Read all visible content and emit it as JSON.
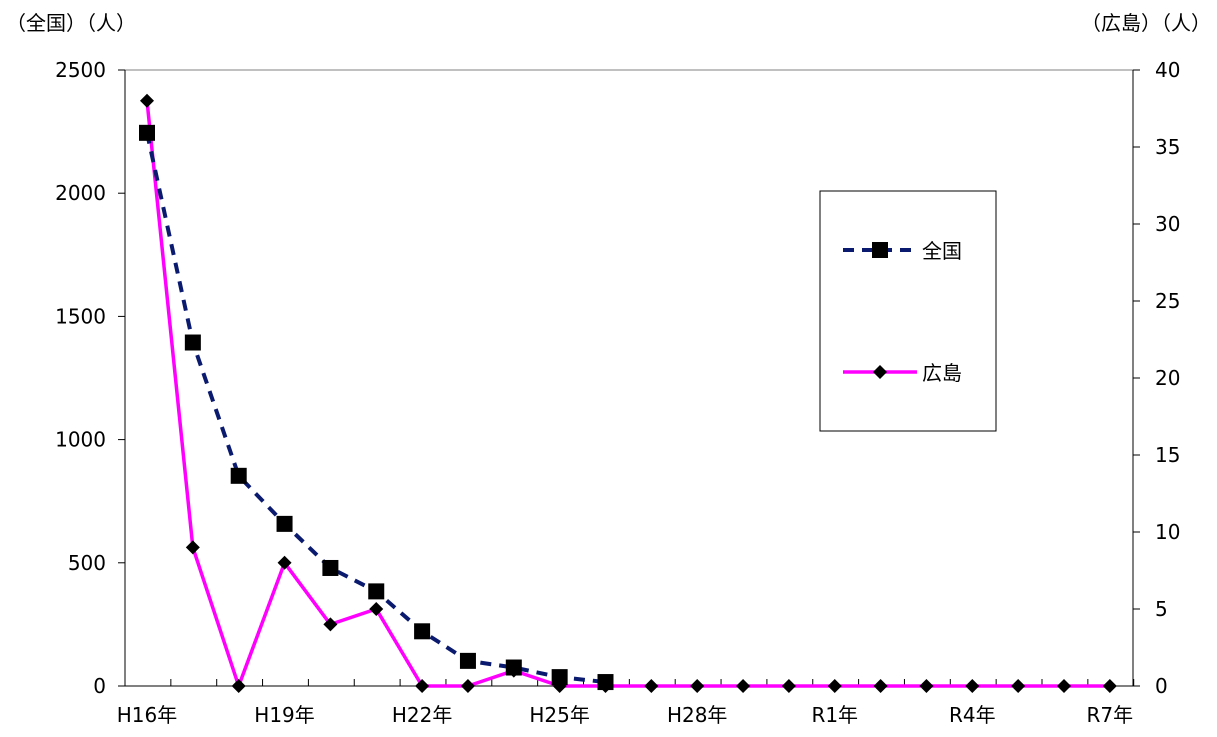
{
  "chart_data": {
    "type": "line",
    "left_axis_unit_label": "（全国）（人）",
    "right_axis_unit_label": "（広島）（人）",
    "ylim_left": [
      0,
      2500
    ],
    "yticks_left": [
      "0",
      "500",
      "1000",
      "1500",
      "2000",
      "2500"
    ],
    "ylim_right": [
      0,
      40
    ],
    "yticks_right": [
      "0",
      "5",
      "10",
      "15",
      "20",
      "25",
      "30",
      "35",
      "40"
    ],
    "x_tick_labels": [
      "H16年",
      "H19年",
      "H22年",
      "H25年",
      "H28年",
      "R1年",
      "R4年",
      "R7年"
    ],
    "x_tick_label_every": 3,
    "grid": false,
    "legend_position": "upper-right",
    "x": [
      "H16",
      "H17",
      "H18",
      "H19",
      "H20",
      "H21",
      "H22",
      "H23",
      "H24",
      "H25",
      "H26",
      "H27",
      "H28",
      "H29",
      "H30",
      "R1",
      "R2",
      "R3",
      "R4",
      "R5",
      "R6",
      "R7"
    ],
    "series": [
      {
        "name": "全国",
        "axis": "left",
        "color": "#0a1a6e",
        "line_style": "dashed",
        "marker": "square",
        "values": [
          2245,
          1394,
          853,
          658,
          479,
          384,
          222,
          102,
          75,
          36,
          16,
          null,
          null,
          null,
          null,
          null,
          null,
          null,
          null,
          null,
          null,
          null
        ]
      },
      {
        "name": "広島",
        "axis": "right",
        "color": "#ff00ff",
        "line_style": "solid",
        "marker": "diamond",
        "values": [
          38,
          9,
          0,
          8,
          4,
          5,
          0,
          0,
          1,
          0,
          0,
          0,
          0,
          0,
          0,
          0,
          0,
          0,
          0,
          0,
          0,
          0
        ]
      }
    ]
  }
}
